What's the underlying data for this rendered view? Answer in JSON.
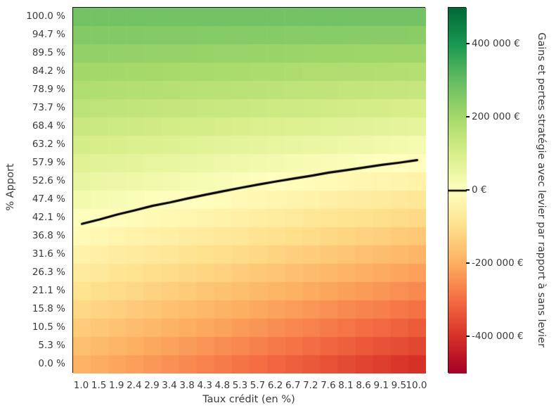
{
  "chart_data": {
    "type": "heatmap",
    "title": "",
    "xlabel": "Taux crédit (en %)",
    "ylabel": "% Apport",
    "colorbar_label": "Gains et pertes stratégie avec levier par rapport à sans levier",
    "x_tick_labels": [
      "1.0",
      "1.5",
      "1.9",
      "2.4",
      "2.9",
      "3.4",
      "3.8",
      "4.3",
      "4.8",
      "5.3",
      "5.7",
      "6.2",
      "6.7",
      "7.2",
      "7.6",
      "8.1",
      "8.6",
      "9.1",
      "9.5",
      "10.0"
    ],
    "y_tick_labels": [
      "100.0 %",
      "94.7 %",
      "89.5 %",
      "84.2 %",
      "78.9 %",
      "73.7 %",
      "68.4 %",
      "63.2 %",
      "57.9 %",
      "52.6 %",
      "47.4 %",
      "42.1 %",
      "36.8 %",
      "31.6 %",
      "26.3 %",
      "21.1 %",
      "15.8 %",
      "10.5 %",
      "5.3 %",
      "0.0 %"
    ],
    "rows_order": "top_to_bottom (100% apport first)",
    "values_eur": [
      [
        280000,
        280000,
        280000,
        280000,
        280000,
        280000,
        280000,
        280000,
        280000,
        280000,
        280000,
        280000,
        280000,
        280000,
        280000,
        280000,
        280000,
        280000,
        280000,
        280000
      ],
      [
        255000,
        255000,
        254000,
        254000,
        253000,
        252000,
        252000,
        251000,
        251000,
        250000,
        249000,
        249000,
        248000,
        248000,
        247000,
        247000,
        246000,
        245000,
        245000,
        244000
      ],
      [
        231000,
        229000,
        228000,
        227000,
        226000,
        225000,
        224000,
        222000,
        221000,
        220000,
        219000,
        218000,
        217000,
        215000,
        214000,
        213000,
        212000,
        211000,
        210000,
        209000
      ],
      [
        206000,
        204000,
        202000,
        201000,
        199000,
        197000,
        195000,
        194000,
        192000,
        190000,
        188000,
        187000,
        185000,
        183000,
        181000,
        180000,
        178000,
        176000,
        175000,
        173000
      ],
      [
        181000,
        179000,
        176000,
        174000,
        172000,
        169000,
        167000,
        165000,
        163000,
        160000,
        158000,
        156000,
        153000,
        151000,
        149000,
        146000,
        144000,
        142000,
        139000,
        137000
      ],
      [
        156000,
        153000,
        151000,
        148000,
        145000,
        142000,
        139000,
        136000,
        133000,
        130000,
        127000,
        124000,
        122000,
        119000,
        116000,
        113000,
        110000,
        107000,
        104000,
        101000
      ],
      [
        132000,
        128000,
        125000,
        121000,
        118000,
        114000,
        111000,
        107000,
        104000,
        100000,
        97000,
        93000,
        90000,
        86000,
        83000,
        79000,
        76000,
        73000,
        69000,
        66000
      ],
      [
        107000,
        103000,
        99000,
        95000,
        91000,
        87000,
        83000,
        78000,
        74000,
        70000,
        66000,
        62000,
        58000,
        54000,
        50000,
        46000,
        42000,
        38000,
        34000,
        30000
      ],
      [
        82000,
        77000,
        73000,
        68000,
        64000,
        59000,
        54000,
        50000,
        45000,
        40000,
        36000,
        31000,
        27000,
        22000,
        17000,
        13000,
        8000,
        3000,
        -1000,
        -6000
      ],
      [
        57000,
        52000,
        47000,
        42000,
        37000,
        31000,
        26000,
        21000,
        16000,
        10000,
        5000,
        0,
        -5000,
        -10000,
        -16000,
        -21000,
        -26000,
        -31000,
        -36000,
        -42000
      ],
      [
        33000,
        27000,
        21000,
        15000,
        9000,
        4000,
        -2000,
        -8000,
        -14000,
        -19000,
        -25000,
        -31000,
        -37000,
        -43000,
        -48000,
        -54000,
        -60000,
        -66000,
        -72000,
        -77000
      ],
      [
        8000,
        2000,
        -5000,
        -11000,
        -18000,
        -24000,
        -30000,
        -37000,
        -43000,
        -49000,
        -56000,
        -62000,
        -69000,
        -75000,
        -81000,
        -88000,
        -94000,
        -100000,
        -107000,
        -113000
      ],
      [
        -17000,
        -24000,
        -31000,
        -38000,
        -45000,
        -52000,
        -59000,
        -65000,
        -72000,
        -79000,
        -86000,
        -93000,
        -100000,
        -107000,
        -114000,
        -121000,
        -128000,
        -135000,
        -142000,
        -149000
      ],
      [
        -42000,
        -49000,
        -57000,
        -64000,
        -72000,
        -79000,
        -87000,
        -94000,
        -102000,
        -109000,
        -117000,
        -124000,
        -132000,
        -139000,
        -147000,
        -154000,
        -162000,
        -170000,
        -177000,
        -185000
      ],
      [
        -66000,
        -74000,
        -83000,
        -91000,
        -99000,
        -107000,
        -115000,
        -123000,
        -131000,
        -139000,
        -147000,
        -155000,
        -164000,
        -172000,
        -180000,
        -188000,
        -196000,
        -204000,
        -212000,
        -220000
      ],
      [
        -91000,
        -100000,
        -108000,
        -117000,
        -126000,
        -134000,
        -143000,
        -152000,
        -161000,
        -169000,
        -178000,
        -187000,
        -195000,
        -204000,
        -213000,
        -221000,
        -230000,
        -239000,
        -247000,
        -256000
      ],
      [
        -116000,
        -125000,
        -134000,
        -144000,
        -153000,
        -162000,
        -171000,
        -181000,
        -190000,
        -199000,
        -208000,
        -218000,
        -227000,
        -236000,
        -245000,
        -255000,
        -264000,
        -273000,
        -283000,
        -292000
      ],
      [
        -141000,
        -150000,
        -160000,
        -170000,
        -180000,
        -190000,
        -200000,
        -209000,
        -219000,
        -229000,
        -239000,
        -249000,
        -259000,
        -268000,
        -278000,
        -288000,
        -298000,
        -308000,
        -318000,
        -328000
      ],
      [
        -165000,
        -176000,
        -186000,
        -197000,
        -207000,
        -217000,
        -228000,
        -238000,
        -249000,
        -259000,
        -269000,
        -280000,
        -290000,
        -301000,
        -311000,
        -322000,
        -332000,
        -342000,
        -353000,
        -363000
      ],
      [
        -190000,
        -201000,
        -212000,
        -223000,
        -234000,
        -245000,
        -256000,
        -267000,
        -278000,
        -289000,
        -300000,
        -311000,
        -322000,
        -333000,
        -344000,
        -355000,
        -366000,
        -377000,
        -388000,
        -399000
      ]
    ],
    "colorbar_range_eur": [
      -500000,
      500000
    ],
    "colorbar_ticks": [
      {
        "value": 400000,
        "label": "400 000 €"
      },
      {
        "value": 200000,
        "label": "200 000 €"
      },
      {
        "value": 0,
        "label": "0 €"
      },
      {
        "value": -200000,
        "label": "-200 000 €"
      },
      {
        "value": -400000,
        "label": "-400 000 €"
      }
    ],
    "colormap": {
      "name": "RdYlGn",
      "stops": [
        "#a50026",
        "#d73027",
        "#f46d43",
        "#fdae61",
        "#fee08b",
        "#ffffbf",
        "#d9ef8b",
        "#a6d96a",
        "#66bd63",
        "#1a9850",
        "#006837"
      ]
    },
    "zero_contour": {
      "color": "#000000",
      "shown_on_colorbar": true
    },
    "grid": false,
    "legend": "colorbar-right",
    "text_color": "#3a3a3a"
  }
}
